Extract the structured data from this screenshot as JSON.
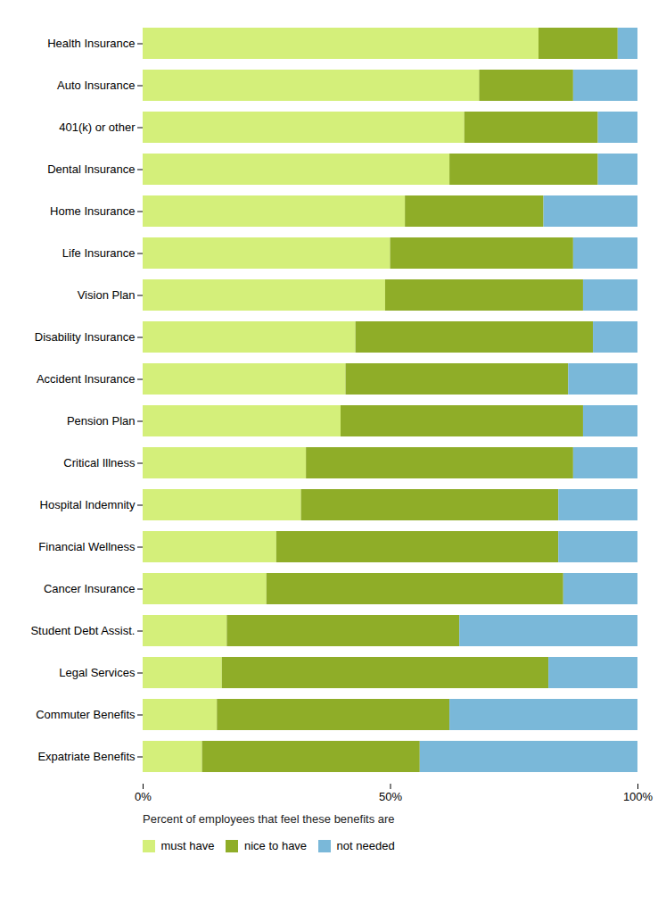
{
  "chart_data": {
    "type": "bar",
    "orientation": "horizontal",
    "stacked": true,
    "xlabel": "Percent of employees that feel these benefits are",
    "categories": [
      "Health Insurance",
      "Auto Insurance",
      "401(k) or other",
      "Dental Insurance",
      "Home Insurance",
      "Life Insurance",
      "Vision Plan",
      "Disability Insurance",
      "Accident Insurance",
      "Pension Plan",
      "Critical Illness",
      "Hospital Indemnity",
      "Financial Wellness",
      "Cancer Insurance",
      "Student Debt Assist.",
      "Legal Services",
      "Commuter Benefits",
      "Expatriate Benefits"
    ],
    "series": [
      {
        "name": "must have",
        "color": "#d4ef7a",
        "values": [
          80,
          68,
          65,
          62,
          53,
          50,
          49,
          43,
          41,
          40,
          33,
          32,
          27,
          25,
          17,
          16,
          15,
          12
        ]
      },
      {
        "name": "nice to have",
        "color": "#8fad28",
        "values": [
          16,
          19,
          27,
          30,
          28,
          37,
          40,
          48,
          45,
          49,
          54,
          52,
          57,
          60,
          47,
          66,
          47,
          44
        ]
      },
      {
        "name": "not needed",
        "color": "#7ab8d9",
        "values": [
          4,
          13,
          8,
          8,
          19,
          13,
          11,
          9,
          14,
          11,
          13,
          16,
          16,
          15,
          36,
          18,
          38,
          44
        ]
      }
    ],
    "xlim": [
      0,
      100
    ],
    "xticks": [
      {
        "value": 0,
        "label": "0%"
      },
      {
        "value": 50,
        "label": "50%"
      },
      {
        "value": 100,
        "label": "100%"
      }
    ],
    "grid": false,
    "legend": "bottom"
  }
}
